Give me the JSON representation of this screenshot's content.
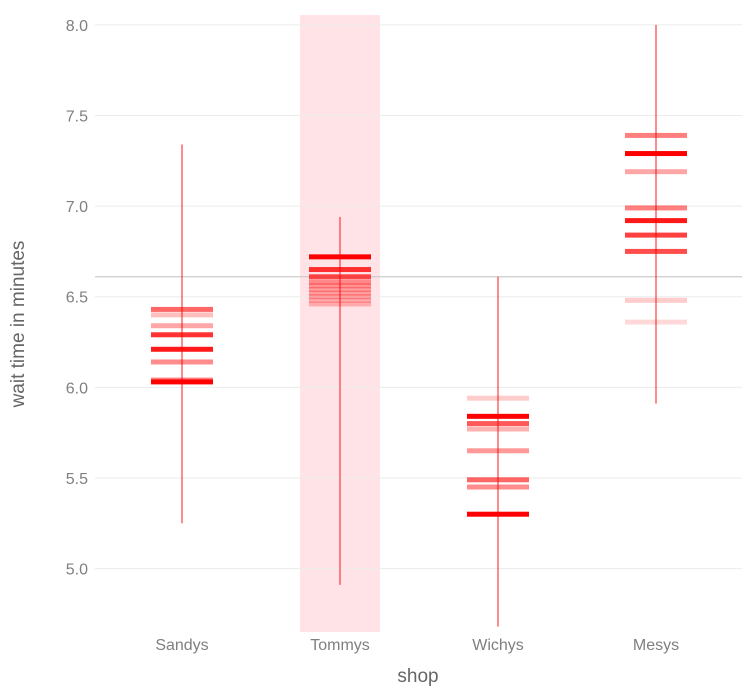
{
  "chart_data": {
    "type": "scatter",
    "xlabel": "shop",
    "ylabel": "wait time in minutes",
    "categories": [
      "Sandys",
      "Tommys",
      "Wichys",
      "Mesys"
    ],
    "ylim": [
      4.65,
      8.06
    ],
    "yticks": [
      5.0,
      5.5,
      6.0,
      6.5,
      7.0,
      7.5,
      8.0
    ],
    "ytick_labels": [
      "5.0",
      "5.5",
      "6.0",
      "6.5",
      "7.0",
      "7.5",
      "8.0"
    ],
    "grid": true,
    "highlighted_category": "Tommys",
    "reference_line": 6.61,
    "colors": {
      "mark": "#ff0000",
      "highlight": "#ffe3e6",
      "grid": "#ebebeb",
      "reference": "#cccccc",
      "axis_text": "#7f7f7f",
      "axis_title": "#666666"
    },
    "series": [
      {
        "category": "Sandys",
        "range": [
          5.25,
          7.34
        ],
        "values": [
          6.03,
          6.04,
          6.14,
          6.21,
          6.29,
          6.34,
          6.4,
          6.43
        ],
        "opacity": [
          1.0,
          0.5,
          0.45,
          0.9,
          0.8,
          0.35,
          0.25,
          0.6
        ]
      },
      {
        "category": "Tommys",
        "range": [
          4.91,
          6.94
        ],
        "values": [
          6.46,
          6.48,
          6.5,
          6.52,
          6.54,
          6.56,
          6.58,
          6.61,
          6.65,
          6.72
        ],
        "opacity": [
          0.25,
          0.25,
          0.3,
          0.3,
          0.3,
          0.35,
          0.4,
          0.7,
          0.8,
          1.0
        ]
      },
      {
        "category": "Wichys",
        "range": [
          4.68,
          6.61
        ],
        "values": [
          5.3,
          5.45,
          5.49,
          5.65,
          5.77,
          5.8,
          5.84,
          5.94
        ],
        "opacity": [
          1.0,
          0.45,
          0.6,
          0.4,
          0.3,
          0.65,
          1.0,
          0.2
        ]
      },
      {
        "category": "Mesys",
        "range": [
          5.91,
          8.0
        ],
        "values": [
          6.36,
          6.48,
          6.75,
          6.84,
          6.92,
          6.99,
          7.19,
          7.29,
          7.39
        ],
        "opacity": [
          0.15,
          0.2,
          0.7,
          0.75,
          0.9,
          0.5,
          0.35,
          1.0,
          0.5
        ]
      }
    ]
  }
}
